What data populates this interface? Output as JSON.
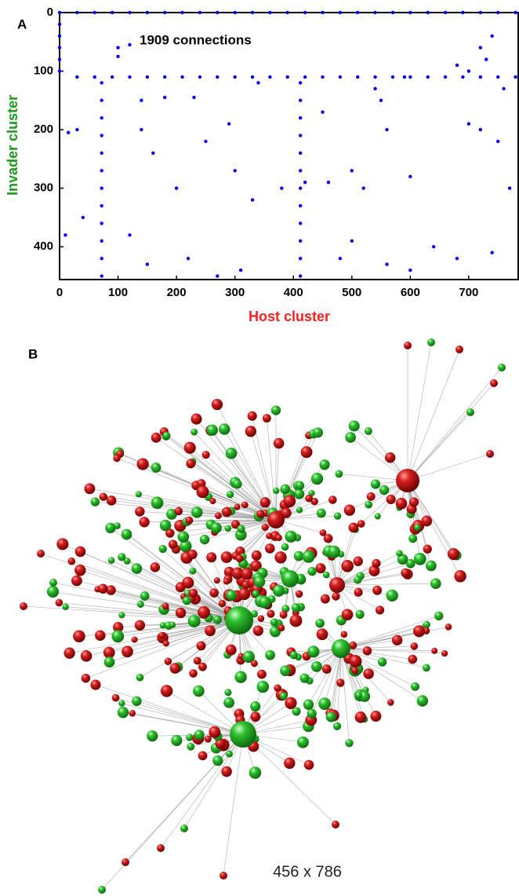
{
  "chart_data": {
    "type": "scatter",
    "panel_label": "A",
    "annotation": "1909 connections",
    "xlabel": "Host cluster",
    "ylabel": "Invader cluster",
    "xlim": [
      0,
      786
    ],
    "ylim": [
      0,
      456
    ],
    "y_inverted": true,
    "xticks": [
      0,
      100,
      200,
      300,
      400,
      500,
      600,
      700
    ],
    "yticks": [
      0,
      100,
      200,
      300,
      400
    ],
    "color": "#0000ff",
    "x": [
      0,
      30,
      60,
      90,
      120,
      150,
      180,
      210,
      240,
      270,
      300,
      330,
      360,
      390,
      420,
      450,
      480,
      510,
      540,
      570,
      600,
      630,
      660,
      690,
      720,
      750,
      780,
      30,
      60,
      90,
      120,
      150,
      180,
      210,
      240,
      270,
      300,
      330,
      360,
      390,
      420,
      450,
      480,
      510,
      540,
      570,
      600,
      630,
      660,
      690,
      720,
      750,
      780,
      72,
      72,
      72,
      72,
      72,
      72,
      72,
      72,
      72,
      72,
      72,
      72,
      412,
      412,
      412,
      412,
      412,
      412,
      412,
      412,
      412,
      412,
      412,
      412,
      0,
      0,
      0,
      0,
      0,
      100,
      100,
      120,
      140,
      140,
      180,
      230,
      200,
      250,
      290,
      300,
      330,
      380,
      420,
      460,
      500,
      520,
      540,
      550,
      560,
      600,
      640,
      680,
      700,
      720,
      750,
      770,
      740,
      220,
      270,
      310,
      480,
      560,
      600,
      150,
      120,
      40,
      10,
      720,
      740,
      700,
      680,
      730,
      160,
      340,
      590,
      760,
      450,
      500,
      15,
      30
    ],
    "values": [
      0,
      0,
      0,
      0,
      0,
      0,
      0,
      0,
      0,
      0,
      0,
      0,
      0,
      0,
      0,
      0,
      0,
      0,
      0,
      0,
      0,
      0,
      0,
      0,
      0,
      0,
      0,
      110,
      110,
      110,
      110,
      110,
      110,
      110,
      110,
      110,
      110,
      110,
      110,
      110,
      110,
      110,
      110,
      110,
      110,
      110,
      110,
      110,
      110,
      110,
      110,
      110,
      110,
      120,
      150,
      180,
      210,
      240,
      270,
      300,
      330,
      360,
      390,
      420,
      450,
      120,
      150,
      180,
      210,
      240,
      270,
      300,
      330,
      360,
      390,
      420,
      450,
      20,
      40,
      60,
      80,
      100,
      60,
      75,
      55,
      150,
      200,
      145,
      145,
      300,
      220,
      190,
      270,
      320,
      300,
      290,
      290,
      270,
      300,
      130,
      150,
      200,
      280,
      400,
      420,
      190,
      200,
      220,
      300,
      410,
      420,
      450,
      440,
      420,
      430,
      440,
      430,
      380,
      350,
      380,
      60,
      40,
      100,
      90,
      80,
      240,
      120,
      110,
      130,
      170,
      390,
      205,
      200
    ]
  },
  "panel_b": {
    "label": "B",
    "caption": "456 x 786"
  }
}
